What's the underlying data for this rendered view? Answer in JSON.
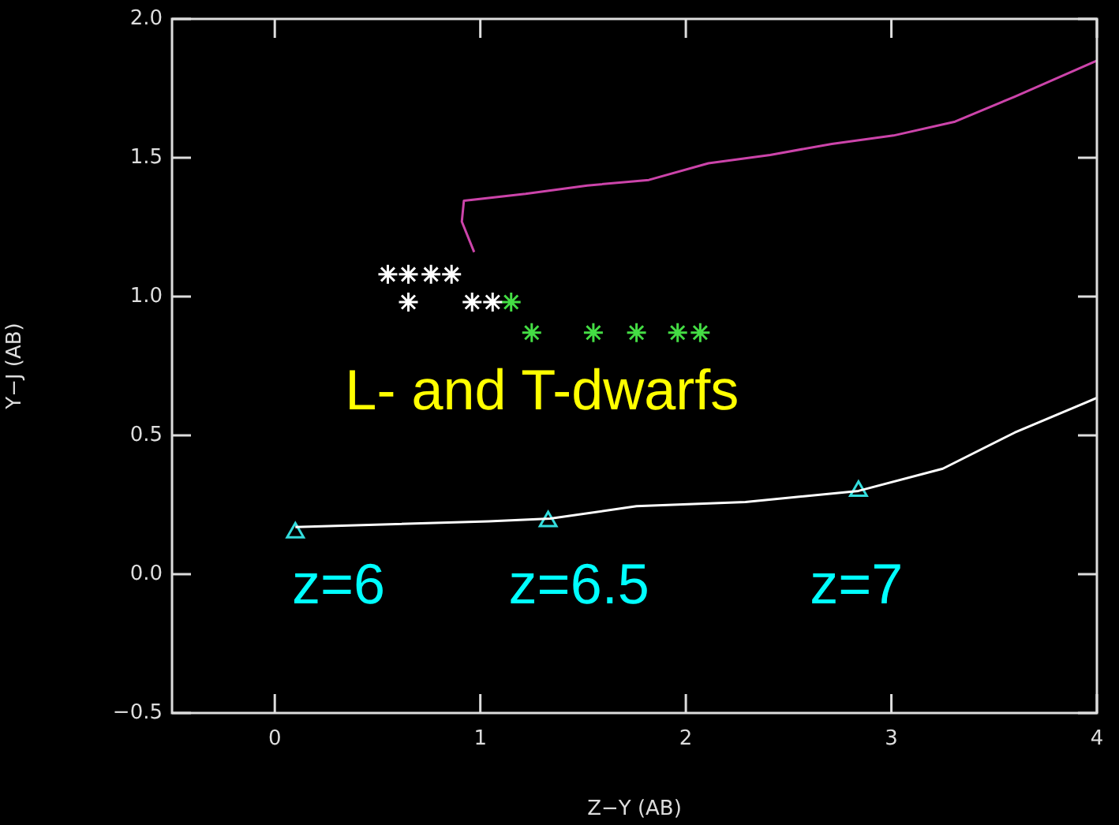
{
  "chart_data": {
    "type": "scatter",
    "xlabel": "Z−Y (AB)",
    "ylabel": "Y−J (AB)",
    "xlim": [
      -0.5,
      4
    ],
    "xticks": [
      0,
      1,
      2,
      3,
      4
    ],
    "ylim": [
      -0.5,
      2.0
    ],
    "yticks": [
      {
        "value": -0.5,
        "label": "−0.5"
      },
      {
        "value": 0,
        "label": "0.0"
      },
      {
        "value": 0.5,
        "label": "0.5"
      },
      {
        "value": 1,
        "label": "1.0"
      },
      {
        "value": 1.5,
        "label": "1.5"
      },
      {
        "value": 2,
        "label": "2.0"
      }
    ],
    "grid": false,
    "legend": false,
    "annotations": [
      "L- and T-dwarfs",
      "z=6",
      "z=6.5",
      "z=7"
    ],
    "series": [
      {
        "type": "line",
        "marker": "none",
        "color": "#cc44aa",
        "x": [
          0.97,
          0.91,
          0.92,
          1.22,
          1.52,
          1.82,
          2.11,
          2.41,
          2.71,
          3.01,
          3.31,
          3.6,
          4.0
        ],
        "values": [
          1.16,
          1.27,
          1.345,
          1.37,
          1.4,
          1.42,
          1.48,
          1.51,
          1.55,
          1.58,
          1.63,
          1.72,
          1.85
        ]
      },
      {
        "type": "line",
        "marker": "none",
        "color": "#ffffff",
        "x": [
          0.1,
          1.04,
          1.34,
          1.76,
          2.29,
          2.84,
          3.25,
          3.6,
          4.0
        ],
        "values": [
          0.17,
          0.19,
          0.2,
          0.245,
          0.26,
          0.3,
          0.38,
          0.51,
          0.635
        ]
      },
      {
        "type": "scatter",
        "marker": "triangle",
        "color": "#33dddd",
        "x": [
          0.1,
          1.33,
          2.84
        ],
        "values": [
          0.15,
          0.19,
          0.3
        ]
      },
      {
        "type": "scatter",
        "marker": "cross",
        "color": "#ffffff",
        "x": [
          0.55,
          0.65,
          0.76,
          0.86,
          0.65,
          0.96,
          1.06
        ],
        "values": [
          1.08,
          1.08,
          1.08,
          1.08,
          0.98,
          0.98,
          0.98
        ]
      },
      {
        "type": "scatter",
        "marker": "cross",
        "color": "#44dd44",
        "x": [
          1.15,
          1.25,
          1.55,
          1.76,
          1.96,
          2.07
        ],
        "values": [
          0.98,
          0.87,
          0.87,
          0.87,
          0.87,
          0.87
        ]
      }
    ]
  }
}
